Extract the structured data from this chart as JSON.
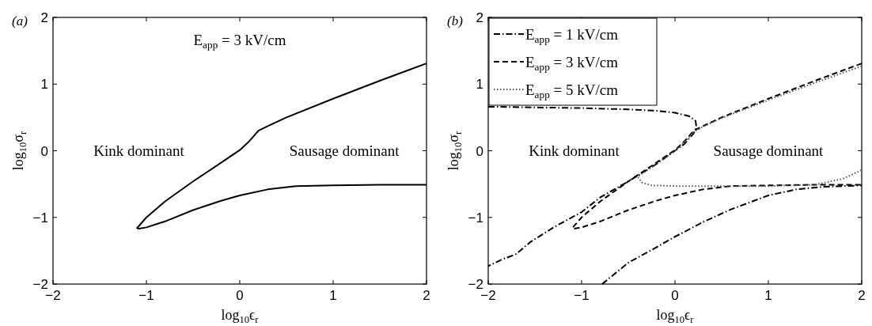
{
  "chart_data": [
    {
      "type": "line",
      "title": "(a)",
      "xlabel": "log$_{10}$ϵ$_{r}$",
      "ylabel": "log$_{10}$σ$_{r}$",
      "xlim": [
        -2,
        2
      ],
      "ylim": [
        -2,
        2
      ],
      "xticks": [
        -2,
        -1,
        0,
        1,
        2
      ],
      "yticks": [
        -2,
        -1,
        0,
        1,
        2
      ],
      "grid": false,
      "legend": false,
      "series": [
        {
          "color": "#000000",
          "line_style": "solid",
          "x": [
            2,
            1.5,
            1,
            0.5,
            0.3,
            0.2,
            0.1,
            0,
            -0.2,
            -0.5,
            -0.8,
            -1,
            -1.1,
            -1.08,
            -1,
            -0.8,
            -0.5,
            -0.2,
            0,
            0.3,
            0.6,
            1,
            1.5,
            2
          ],
          "values": [
            1.31,
            1.05,
            0.78,
            0.5,
            0.37,
            0.3,
            0.14,
            0.01,
            -0.18,
            -0.46,
            -0.76,
            -1.0,
            -1.16,
            -1.17,
            -1.15,
            -1.06,
            -0.89,
            -0.75,
            -0.67,
            -0.58,
            -0.53,
            -0.52,
            -0.51,
            -0.51
          ]
        }
      ],
      "annotations": [
        "E$_{app}$ = 3 kV/cm",
        "Kink dominant",
        "Sausage dominant"
      ]
    },
    {
      "type": "line",
      "title": "(b)",
      "xlabel": "log$_{10}$ϵ$_{r}$",
      "ylabel": "log$_{10}$σ$_{r}$",
      "xlim": [
        -2,
        2
      ],
      "ylim": [
        -2,
        2
      ],
      "xticks": [
        -2,
        -1,
        0,
        1,
        2
      ],
      "yticks": [
        -2,
        -1,
        0,
        1,
        2
      ],
      "grid": false,
      "legend": "top left",
      "series": [
        {
          "name": "E$_{app}$ = 1 kV/cm",
          "color": "#000000",
          "line_style": "dashdot",
          "x": [
            -2,
            -1.5,
            -1,
            -0.5,
            -0.2,
            0,
            0.15,
            0.22,
            0.23,
            0.2,
            0.1,
            0,
            -0.2,
            -0.5,
            -0.8,
            -1,
            -1.3,
            -1.55,
            -1.7,
            -1.85,
            -2,
            null,
            -0.78,
            -0.5,
            -0.2,
            0,
            0.3,
            0.6,
            1,
            1.3,
            1.6,
            2
          ],
          "values": [
            0.66,
            0.65,
            0.64,
            0.62,
            0.6,
            0.57,
            0.52,
            0.45,
            0.35,
            0.26,
            0.1,
            0.0,
            -0.2,
            -0.46,
            -0.7,
            -0.92,
            -1.15,
            -1.37,
            -1.55,
            -1.63,
            -1.73,
            null,
            -2,
            -1.68,
            -1.45,
            -1.29,
            -1.07,
            -0.88,
            -0.67,
            -0.58,
            -0.54,
            -0.52
          ]
        },
        {
          "name": "E$_{app}$ = 3 kV/cm",
          "color": "#000000",
          "line_style": "dashed",
          "x": [
            2,
            1.5,
            1,
            0.5,
            0.3,
            0.2,
            0.1,
            0,
            -0.2,
            -0.5,
            -0.8,
            -1,
            -1.1,
            -1.08,
            -1,
            -0.8,
            -0.5,
            -0.2,
            0,
            0.3,
            0.6,
            1,
            1.5,
            2
          ],
          "values": [
            1.31,
            1.05,
            0.78,
            0.5,
            0.37,
            0.3,
            0.14,
            0.01,
            -0.18,
            -0.46,
            -0.76,
            -1.0,
            -1.16,
            -1.17,
            -1.15,
            -1.06,
            -0.89,
            -0.75,
            -0.67,
            -0.58,
            -0.53,
            -0.52,
            -0.51,
            -0.51
          ]
        },
        {
          "name": "E$_{app}$ = 5 kV/cm",
          "color": "#555555",
          "line_style": "dotted",
          "x": [
            2,
            1.5,
            1,
            0.5,
            0.3,
            0.2,
            0.1,
            0,
            -0.2,
            -0.4,
            -0.35,
            -0.25,
            0,
            0.5,
            1,
            1.5,
            1.8,
            2
          ],
          "values": [
            1.27,
            1.02,
            0.76,
            0.49,
            0.36,
            0.28,
            0.13,
            0.0,
            -0.2,
            -0.39,
            -0.48,
            -0.52,
            -0.53,
            -0.53,
            -0.53,
            -0.51,
            -0.42,
            -0.29
          ]
        }
      ],
      "annotations": [
        "Kink dominant",
        "Sausage dominant"
      ]
    }
  ]
}
